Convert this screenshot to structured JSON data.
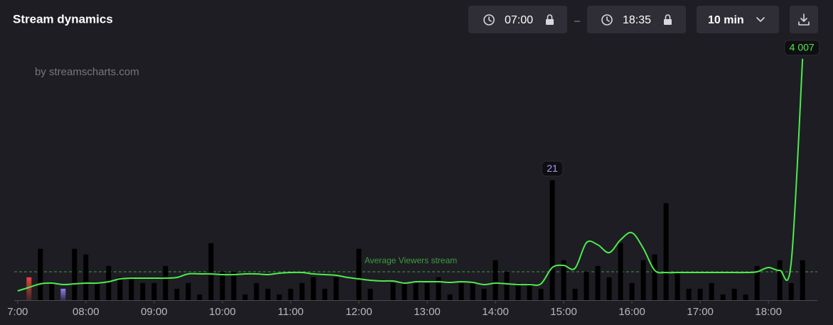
{
  "header": {
    "title": "Stream dynamics",
    "start_time": "07:00",
    "separator": "–",
    "end_time": "18:35",
    "interval": "10 min"
  },
  "watermark": "by streamscharts.com",
  "chart_data": {
    "type": "bar",
    "x": [
      420,
      430,
      440,
      450,
      460,
      470,
      480,
      490,
      500,
      510,
      520,
      530,
      540,
      550,
      560,
      570,
      580,
      590,
      600,
      610,
      620,
      630,
      640,
      650,
      660,
      670,
      680,
      690,
      700,
      710,
      720,
      730,
      740,
      750,
      760,
      770,
      780,
      790,
      800,
      810,
      820,
      830,
      840,
      850,
      860,
      870,
      880,
      890,
      900,
      910,
      920,
      930,
      940,
      950,
      960,
      970,
      980,
      990,
      1000,
      1010,
      1020,
      1030,
      1040,
      1050,
      1060,
      1070,
      1080,
      1090,
      1100,
      1110
    ],
    "xlim": [
      417,
      1123
    ],
    "xticks": [
      {
        "value": 420,
        "label": "7:00"
      },
      {
        "value": 480,
        "label": "08:00"
      },
      {
        "value": 540,
        "label": "09:00"
      },
      {
        "value": 600,
        "label": "10:00"
      },
      {
        "value": 660,
        "label": "11:00"
      },
      {
        "value": 720,
        "label": "12:00"
      },
      {
        "value": 780,
        "label": "13:00"
      },
      {
        "value": 840,
        "label": "14:00"
      },
      {
        "value": 900,
        "label": "15:00"
      },
      {
        "value": 960,
        "label": "16:00"
      },
      {
        "value": 1020,
        "label": "17:00"
      },
      {
        "value": 1080,
        "label": "18:00"
      }
    ],
    "ylim": [
      0,
      47.5
    ],
    "y2lim": [
      0,
      4500
    ],
    "series": [
      {
        "type": "bar",
        "values": [
          null,
          4,
          9,
          3,
          2,
          9,
          8,
          3,
          6,
          4,
          4,
          3,
          3,
          6,
          2,
          3,
          1,
          10,
          5,
          5,
          1,
          3,
          2,
          1,
          2,
          3,
          4,
          2,
          4,
          0,
          9,
          2,
          0,
          3,
          3,
          3,
          3,
          4,
          1,
          3,
          3,
          2,
          7,
          5,
          3,
          3,
          2,
          21,
          7,
          2,
          5,
          6,
          4,
          10,
          3,
          7,
          8,
          17,
          5,
          2,
          2,
          3,
          1,
          2,
          1,
          6,
          0,
          7,
          3,
          7
        ],
        "colors": [
          null,
          "#e8453c",
          "#e8453c",
          "#e8453c",
          "#8b80f0",
          "#e8453c",
          "#e8453c",
          "#e8453c",
          "#e8453c",
          "#e8453c",
          "#e8453c",
          "#e8453c",
          "#e8453c",
          "#e8453c",
          "#e8453c",
          "#e8453c",
          "#e8453c",
          "#e8453c",
          "#e8453c",
          "#e8453c",
          "#e8453c",
          "#e8453c",
          "#e8453c",
          "#e8453c",
          "#e8453c",
          "#e8453c",
          "#e8453c",
          "#e8453c",
          "#e8453c",
          "#e8453c",
          "#e8453c",
          "#e8453c",
          "#e8453c",
          "#e8453c",
          "#e8453c",
          "#e8453c",
          "#e8453c",
          "#e8453c",
          "#e8453c",
          "#e8453c",
          "#e8453c",
          "#e8453c",
          "#e8453c",
          "#e8453c",
          "#e8453c",
          "#e8453c",
          "#e8453c",
          "#8b80f0",
          "#8b80f0",
          "#e8453c",
          "#e8453c",
          "#e8453c",
          "#e8453c",
          "#e8453c",
          "#e8453c",
          "#e8453c",
          "#e8453c",
          "#e8453c",
          "#8b80f0",
          "#e8453c",
          "#e8453c",
          "#8b80f0",
          "#e8453c",
          "#e8453c",
          "#8b80f0",
          "#8b80f0",
          "#e8453c",
          "#e8453c",
          "#e8453c",
          "#e8453c"
        ],
        "value_labels": [
          null,
          null,
          null,
          null,
          null,
          null,
          null,
          null,
          null,
          null,
          null,
          null,
          null,
          null,
          null,
          null,
          null,
          null,
          null,
          null,
          null,
          null,
          null,
          null,
          null,
          null,
          null,
          null,
          null,
          null,
          null,
          null,
          null,
          null,
          null,
          null,
          null,
          null,
          null,
          null,
          null,
          null,
          null,
          null,
          null,
          null,
          null,
          "21",
          null,
          null,
          null,
          null,
          null,
          null,
          null,
          null,
          null,
          null,
          null,
          null,
          null,
          null,
          null,
          null,
          null,
          null,
          null,
          null,
          null,
          null
        ]
      },
      {
        "type": "line",
        "axis": "y2",
        "color": "#4cec4c",
        "values": [
          153,
          212,
          271,
          283,
          259,
          271,
          283,
          283,
          306,
          353,
          365,
          365,
          365,
          365,
          377,
          436,
          436,
          436,
          424,
          424,
          436,
          436,
          424,
          448,
          459,
          459,
          436,
          424,
          412,
          377,
          353,
          330,
          318,
          318,
          283,
          306,
          306,
          306,
          294,
          306,
          294,
          259,
          283,
          271,
          259,
          259,
          271,
          542,
          577,
          530,
          954,
          919,
          789,
          1001,
          1119,
          860,
          495,
          459,
          459,
          459,
          459,
          459,
          459,
          459,
          459,
          471,
          542,
          495,
          624,
          4007
        ],
        "value_labels": [
          null,
          null,
          null,
          null,
          null,
          null,
          null,
          null,
          null,
          null,
          null,
          null,
          null,
          null,
          null,
          null,
          null,
          null,
          null,
          null,
          null,
          null,
          null,
          null,
          null,
          null,
          null,
          null,
          null,
          null,
          null,
          null,
          null,
          null,
          null,
          null,
          null,
          null,
          null,
          null,
          null,
          null,
          null,
          null,
          null,
          null,
          null,
          null,
          null,
          null,
          null,
          null,
          null,
          null,
          null,
          null,
          null,
          null,
          null,
          null,
          null,
          null,
          null,
          null,
          null,
          null,
          null,
          null,
          null,
          "4 007"
        ]
      }
    ],
    "average": {
      "label": "Average Viewers stream",
      "value": 471,
      "axis": "y2",
      "color": "#3f9c3f"
    }
  }
}
